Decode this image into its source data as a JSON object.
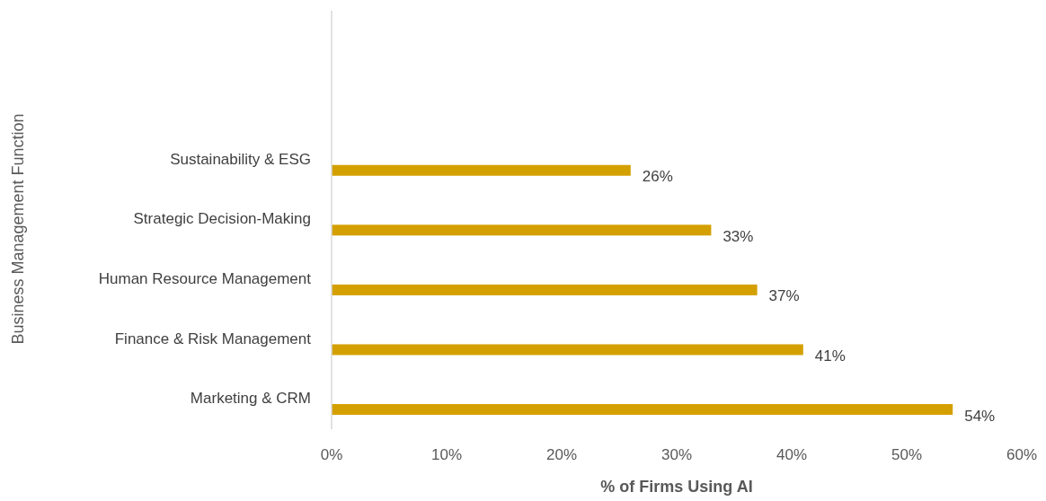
{
  "chart_data": {
    "type": "bar",
    "orientation": "horizontal",
    "xlabel": "% of Firms Using AI",
    "ylabel": "Business Management Function",
    "categories": [
      null,
      null,
      "Sustainability & ESG",
      "Strategic Decision-Making",
      "Human Resource Management",
      "Finance & Risk Management",
      "Marketing & CRM"
    ],
    "values": [
      null,
      null,
      26,
      33,
      37,
      41,
      54
    ],
    "value_labels": [
      null,
      null,
      "26%",
      "33%",
      "37%",
      "41%",
      "54%"
    ],
    "color": "#d4a000",
    "xlim": [
      0,
      60
    ],
    "xticks": [
      {
        "value": 0,
        "label": "0%"
      },
      {
        "value": 10,
        "label": "10%"
      },
      {
        "value": 20,
        "label": "20%"
      },
      {
        "value": 30,
        "label": "30%"
      },
      {
        "value": 40,
        "label": "40%"
      },
      {
        "value": 50,
        "label": "50%"
      },
      {
        "value": 60,
        "label": "60%"
      }
    ],
    "grid": false
  }
}
